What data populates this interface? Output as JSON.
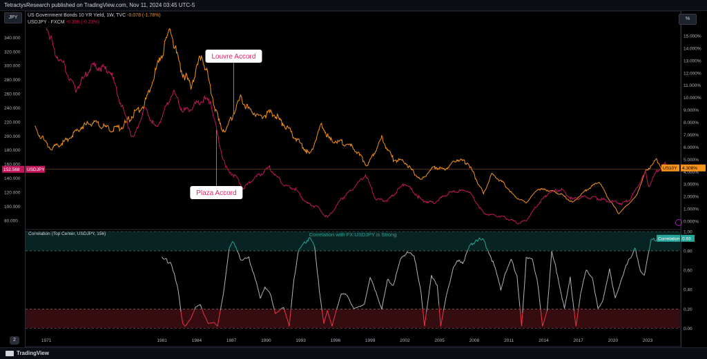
{
  "header": {
    "published": "TetractysResearch published on TradingView.com, Nov 11, 2024 03:45 UTC-5"
  },
  "scale_buttons": {
    "left": "JPY",
    "right": "%"
  },
  "legend": {
    "line1_name": "US Government Bonds 10 YR Yield, 1W, TVC",
    "line1_change": "-0.078 (-1.78%)",
    "line2_name": "USDJPY · FXCM",
    "line2_change": "-0.356 (-0.23%)"
  },
  "footer": {
    "brand": "TradingView",
    "page_badge": "2"
  },
  "colors": {
    "yield": "#f7931a",
    "usdjpy": "#c2185b",
    "corr": "#b2b5be",
    "corr_high": "#26a69a",
    "corr_low": "#f23645",
    "bg": "#000000"
  },
  "chart_data": [
    {
      "type": "line",
      "series": [
        {
          "name": "US10Y",
          "axis": "right",
          "x": [
            1970.0,
            1971.0,
            1971.5,
            1972.5,
            1974.0,
            1975.0,
            1976.5,
            1977.5,
            1978.5,
            1979.5,
            1980.3,
            1981.0,
            1981.7,
            1982.5,
            1983.5,
            1984.4,
            1985.0,
            1986.0,
            1986.5,
            1987.8,
            1988.5,
            1989.5,
            1990.5,
            1991.5,
            1992.5,
            1993.8,
            1994.8,
            1995.5,
            1996.5,
            1997.5,
            1998.8,
            2000.0,
            2001.0,
            2002.0,
            2003.4,
            2004.5,
            2005.5,
            2006.5,
            2007.5,
            2008.8,
            2009.5,
            2010.5,
            2011.5,
            2012.5,
            2013.5,
            2014.5,
            2015.5,
            2016.5,
            2017.5,
            2018.8,
            2019.5,
            2020.5,
            2021.0,
            2022.0,
            2022.8,
            2023.8,
            2024.3,
            2024.85
          ],
          "values": [
            7.5,
            6.3,
            5.9,
            6.4,
            7.6,
            8.0,
            7.4,
            7.6,
            8.6,
            9.5,
            11.8,
            13.5,
            15.7,
            12.5,
            11.0,
            13.5,
            11.5,
            7.7,
            7.3,
            10.0,
            9.0,
            8.5,
            8.8,
            7.9,
            6.8,
            5.4,
            7.9,
            6.6,
            6.4,
            6.0,
            4.5,
            6.7,
            5.0,
            4.8,
            3.3,
            4.4,
            4.2,
            5.0,
            4.7,
            2.2,
            3.8,
            3.1,
            2.0,
            1.5,
            2.6,
            2.5,
            2.2,
            1.5,
            2.4,
            3.2,
            2.0,
            0.6,
            1.1,
            2.0,
            4.0,
            5.0,
            4.2,
            4.31
          ]
        },
        {
          "name": "USDJPY",
          "axis": "left",
          "x": [
            1971.0,
            1971.7,
            1972.5,
            1973.5,
            1975.0,
            1976.5,
            1978.5,
            1979.5,
            1980.5,
            1982.0,
            1982.8,
            1983.5,
            1984.5,
            1985.2,
            1985.8,
            1986.5,
            1987.5,
            1988.0,
            1989.0,
            1990.3,
            1991.5,
            1992.5,
            1993.5,
            1994.5,
            1995.3,
            1996.5,
            1997.5,
            1998.6,
            1999.5,
            2000.5,
            2001.5,
            2002.0,
            2003.5,
            2004.5,
            2005.9,
            2007.5,
            2008.8,
            2010.5,
            2011.8,
            2012.5,
            2013.5,
            2014.5,
            2015.5,
            2016.5,
            2017.5,
            2018.5,
            2019.5,
            2020.8,
            2021.5,
            2022.8,
            2023.1,
            2023.8,
            2024.5,
            2024.85
          ],
          "values": [
            358,
            320,
            301,
            265,
            300,
            293,
            195,
            240,
            210,
            265,
            235,
            240,
            252,
            250,
            200,
            155,
            140,
            125,
            140,
            155,
            130,
            125,
            105,
            98,
            83,
            110,
            125,
            145,
            110,
            108,
            125,
            133,
            108,
            105,
            120,
            123,
            90,
            85,
            76,
            80,
            103,
            120,
            124,
            110,
            113,
            112,
            108,
            104,
            110,
            148,
            128,
            150,
            160,
            152.568
          ]
        }
      ],
      "left_axis": {
        "ylim": [
          70,
          360
        ],
        "ticks": [
          80,
          100,
          120,
          140,
          160,
          180,
          200,
          220,
          240,
          260,
          280,
          300,
          320,
          340
        ],
        "tick_labels": [
          "80.000",
          "100.000",
          "120.000",
          "140.000",
          "160.000",
          "180.000",
          "200.000",
          "220.000",
          "240.000",
          "260.000",
          "280.000",
          "300.000",
          "320.000",
          "340.000"
        ]
      },
      "right_axis": {
        "ylim": [
          -0.5,
          16
        ],
        "ticks": [
          0,
          1,
          2,
          3,
          4,
          5,
          6,
          7,
          8,
          9,
          10,
          11,
          12,
          13,
          14,
          15
        ],
        "tick_labels": [
          "0.000%",
          "1.000%",
          "2.000%",
          "3.000%",
          "4.000%",
          "5.000%",
          "6.000%",
          "7.000%",
          "8.000%",
          "9.000%",
          "10.000%",
          "11.000%",
          "12.000%",
          "13.000%",
          "14.000%",
          "15.000%"
        ]
      },
      "xlim": [
        1969.2,
        2025.8
      ],
      "last_values": {
        "usdjpy_label": "152.568",
        "usdjpy_tag": "USDJPY",
        "us10y_tag": "US10Y",
        "us10y_label": "4.308%"
      },
      "annotations": [
        {
          "text": "Louvre Accord",
          "x": 1987.2,
          "y_at": 1987.2,
          "connect": "US10Y"
        },
        {
          "text": "Plaza Accord",
          "x": 1985.7,
          "y_at": 1985.7,
          "connect": "USDJPY"
        }
      ]
    },
    {
      "type": "line",
      "title": "Correlation (Top Center, USDJPY, 156)",
      "zone_label": "Correlation with FX:USDJPY is Strong",
      "series": [
        {
          "name": "Correlation",
          "x": [
            1981.0,
            1981.8,
            1982.4,
            1982.8,
            1983.0,
            1983.5,
            1983.9,
            1984.3,
            1984.6,
            1985.0,
            1985.5,
            1985.8,
            1986.3,
            1986.8,
            1987.1,
            1987.4,
            1987.9,
            1988.5,
            1989.0,
            1989.5,
            1989.9,
            1990.3,
            1990.8,
            1991.5,
            1992.0,
            1992.4,
            1992.8,
            1993.3,
            1993.8,
            1994.2,
            1994.6,
            1995.0,
            1995.3,
            1995.7,
            1996.1,
            1996.5,
            1997.0,
            1997.6,
            1998.0,
            1998.5,
            1999.0,
            1999.5,
            2000.0,
            2000.5,
            2001.0,
            2001.6,
            2002.2,
            2002.8,
            2003.4,
            2003.7,
            2004.3,
            2004.8,
            2005.1,
            2005.6,
            2006.2,
            2006.7,
            2007.0,
            2007.6,
            2008.2,
            2008.8,
            2009.2,
            2009.8,
            2010.3,
            2010.7,
            2011.2,
            2011.7,
            2012.1,
            2012.5,
            2013.0,
            2013.5,
            2013.9,
            2014.3,
            2014.7,
            2015.2,
            2015.8,
            2016.3,
            2016.8,
            2017.2,
            2017.7,
            2018.2,
            2018.7,
            2019.1,
            2019.7,
            2020.2,
            2020.8,
            2021.3,
            2021.9,
            2022.3,
            2022.7,
            2023.3,
            2023.9,
            2024.4,
            2024.85
          ],
          "values": [
            0.72,
            0.68,
            0.38,
            0.05,
            0.02,
            0.1,
            0.22,
            0.25,
            0.15,
            0.05,
            0.06,
            0.02,
            0.35,
            0.82,
            0.88,
            0.85,
            0.7,
            0.72,
            0.55,
            0.3,
            0.43,
            0.38,
            0.15,
            0.22,
            0.02,
            0.5,
            0.8,
            0.88,
            0.95,
            0.82,
            0.4,
            0.05,
            0.18,
            0.02,
            0.2,
            0.35,
            0.35,
            0.2,
            0.22,
            0.25,
            0.52,
            0.38,
            0.2,
            0.5,
            0.45,
            0.7,
            0.8,
            0.74,
            0.38,
            0.02,
            0.55,
            0.45,
            0.02,
            0.35,
            0.62,
            0.72,
            0.68,
            0.84,
            0.92,
            0.9,
            0.82,
            0.62,
            0.4,
            0.58,
            0.7,
            0.55,
            0.02,
            0.72,
            0.74,
            0.45,
            0.02,
            0.18,
            0.78,
            0.55,
            0.2,
            0.52,
            0.02,
            0.35,
            0.62,
            0.52,
            0.2,
            0.28,
            0.6,
            0.32,
            0.52,
            0.7,
            0.82,
            0.62,
            0.55,
            0.9,
            0.93,
            0.93,
            0.93
          ]
        }
      ],
      "ylim": [
        -0.04,
        1.0
      ],
      "ticks": [
        0,
        0.2,
        0.4,
        0.6,
        0.8,
        1.0
      ],
      "tick_labels": [
        "0.00",
        "0.20",
        "0.40",
        "0.60",
        "0.80",
        "1.00"
      ],
      "high_threshold": 0.8,
      "low_threshold": 0.2,
      "last_label": "Correlation",
      "last_value": "0.93"
    }
  ],
  "x_axis": {
    "ticks": [
      1971,
      1981,
      1984,
      1987,
      1990,
      1993,
      1996,
      1999,
      2002,
      2005,
      2008,
      2011,
      2014,
      2017,
      2020,
      2023
    ],
    "tick_labels": [
      "1971",
      "1981",
      "1984",
      "1987",
      "1990",
      "1993",
      "1996",
      "1999",
      "2002",
      "2005",
      "2008",
      "2011",
      "2014",
      "2017",
      "2020",
      "2023"
    ]
  }
}
